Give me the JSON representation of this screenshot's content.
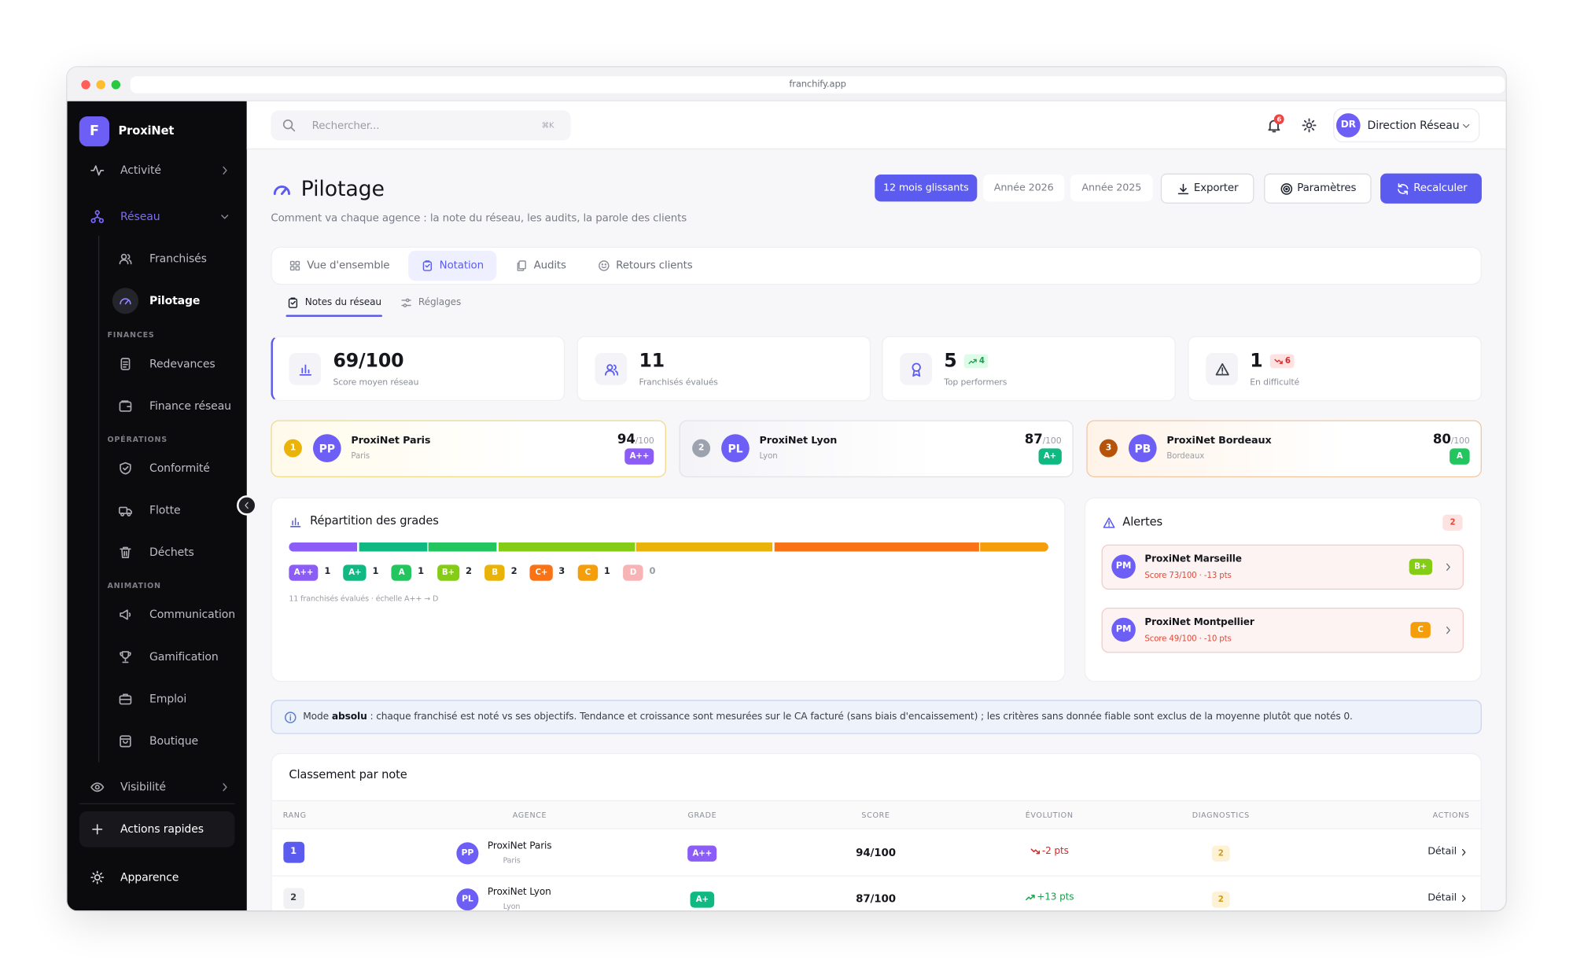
{
  "browser": {
    "url": "franchify.app"
  },
  "sidebar": {
    "logo": "F",
    "brand": "ProxiNet",
    "top": [
      "Activité",
      "Réseau"
    ],
    "sub": [
      "Franchisés",
      "Pilotage"
    ],
    "sections": [
      {
        "title": "FINANCES",
        "items": [
          "Redevances",
          "Finance réseau"
        ]
      },
      {
        "title": "OPÉRATIONS",
        "items": [
          "Conformité",
          "Flotte",
          "Déchets"
        ]
      },
      {
        "title": "ANIMATION",
        "items": [
          "Communication",
          "Gamification",
          "Emploi",
          "Boutique"
        ]
      }
    ],
    "bottom": [
      "Visibilité",
      "Actions rapides",
      "Apparence"
    ]
  },
  "topbar": {
    "search_placeholder": "Rechercher...",
    "shortcut": "⌘K",
    "notifications": "6",
    "user_initials": "DR",
    "user_name": "Direction Réseau"
  },
  "header": {
    "title": "Pilotage",
    "subtitle": "Comment va chaque agence : la note du réseau, les audits, la parole des clients",
    "periods": [
      "12 mois glissants",
      "Année 2026",
      "Année 2025"
    ],
    "actions": [
      "Exporter",
      "Paramètres",
      "Recalculer"
    ]
  },
  "tabs": [
    "Vue d'ensemble",
    "Notation",
    "Audits",
    "Retours clients"
  ],
  "subtabs": [
    "Notes du réseau",
    "Réglages"
  ],
  "kpis": [
    {
      "value": "69/100",
      "label": "Score moyen réseau"
    },
    {
      "value": "11",
      "label": "Franchisés évalués"
    },
    {
      "value": "5",
      "badge": "4",
      "trend": "up",
      "label": "Top performers"
    },
    {
      "value": "1",
      "badge": "6",
      "trend": "down",
      "label": "En difficulté"
    }
  ],
  "podium": [
    {
      "rank": "1",
      "initials": "PP",
      "name": "ProxiNet Paris",
      "city": "Paris",
      "score": "94",
      "max": "/100",
      "grade": "A++"
    },
    {
      "rank": "2",
      "initials": "PL",
      "name": "ProxiNet Lyon",
      "city": "Lyon",
      "score": "87",
      "max": "/100",
      "grade": "A+"
    },
    {
      "rank": "3",
      "initials": "PB",
      "name": "ProxiNet Bordeaux",
      "city": "Bordeaux",
      "score": "80",
      "max": "/100",
      "grade": "A"
    }
  ],
  "grade_distribution": {
    "title": "Répartition des grades",
    "grades": [
      {
        "grade": "A++",
        "count": 1,
        "color": "#8b5cf6"
      },
      {
        "grade": "A+",
        "count": 1,
        "color": "#10b981"
      },
      {
        "grade": "A",
        "count": 1,
        "color": "#22c55e"
      },
      {
        "grade": "B+",
        "count": 2,
        "color": "#84cc16"
      },
      {
        "grade": "B",
        "count": 2,
        "color": "#eab308"
      },
      {
        "grade": "C+",
        "count": 3,
        "color": "#f97316"
      },
      {
        "grade": "C",
        "count": 1,
        "color": "#f59e0b"
      },
      {
        "grade": "D",
        "count": 0,
        "color": "#f8b4b4"
      }
    ],
    "note": "11 franchisés évalués · échelle A++ → D"
  },
  "alerts": {
    "title": "Alertes",
    "count": "2",
    "items": [
      {
        "initials": "PM",
        "name": "ProxiNet Marseille",
        "detail": "Score 73/100 · -13 pts",
        "grade": "B+"
      },
      {
        "initials": "PM",
        "name": "ProxiNet Montpellier",
        "detail": "Score 49/100 · -10 pts",
        "grade": "C"
      }
    ]
  },
  "info": {
    "prefix": "Mode ",
    "emphasis": "absolu",
    "text": " : chaque franchisé est noté vs ses objectifs. Tendance et croissance sont mesurées sur le CA facturé (sans biais d'encaissement) ; les critères sans donnée fiable sont exclus de la moyenne plutôt que notés 0."
  },
  "ranking": {
    "title": "Classement par note",
    "columns": [
      "RANG",
      "AGENCE",
      "GRADE",
      "SCORE",
      "ÉVOLUTION",
      "DIAGNOSTICS",
      "ACTIONS"
    ],
    "rows": [
      {
        "rank": "1",
        "initials": "PP",
        "name": "ProxiNet Paris",
        "city": "Paris",
        "grade": "A++",
        "score": "94/100",
        "evolution": "-2 pts",
        "diagnostics": "2",
        "action": "Détail"
      },
      {
        "rank": "2",
        "initials": "PL",
        "name": "ProxiNet Lyon",
        "city": "Lyon",
        "grade": "A+",
        "score": "87/100",
        "evolution": "+13 pts",
        "diagnostics": "2",
        "action": "Détail"
      }
    ]
  }
}
